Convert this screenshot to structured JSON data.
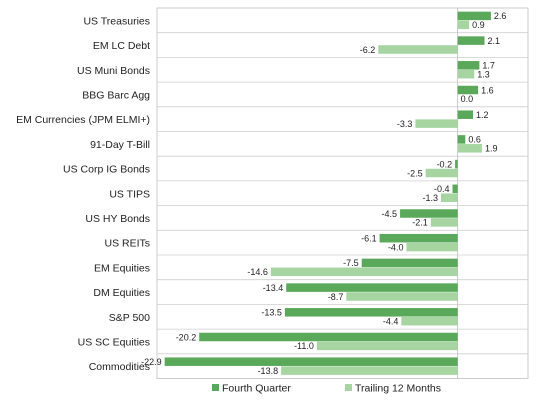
{
  "chart_data": {
    "type": "bar",
    "orientation": "horizontal",
    "categories": [
      "US Treasuries",
      "EM LC Debt",
      "US Muni Bonds",
      "BBG Barc Agg",
      "EM Currencies (JPM ELMI+)",
      "91-Day T-Bill",
      "US Corp IG Bonds",
      "US TIPS",
      "US HY Bonds",
      "US REITs",
      "EM Equities",
      "DM Equities",
      "S&P 500",
      "US SC Equities",
      "Commodities"
    ],
    "series": [
      {
        "name": "Fourth Quarter",
        "color": "#5aa85a",
        "values": [
          2.6,
          2.1,
          1.7,
          1.6,
          1.2,
          0.6,
          -0.2,
          -0.4,
          -4.5,
          -6.1,
          -7.5,
          -13.4,
          -13.5,
          -20.2,
          -22.9
        ],
        "labels": [
          "2.6",
          "2.1",
          "1.7",
          "1.6",
          "1.2",
          "0.6",
          "-0.2",
          "-0.4",
          "-4.5",
          "-6.1",
          "-7.5",
          "-13.4",
          "-13.5",
          "-20.2",
          "-22.9"
        ]
      },
      {
        "name": "Trailing 12 Months",
        "color": "#a6d5a2",
        "values": [
          0.9,
          -6.2,
          1.3,
          0.0,
          -3.3,
          1.9,
          -2.5,
          -1.3,
          -2.1,
          -4.0,
          -14.6,
          -8.7,
          -4.4,
          -11.0,
          -13.8
        ],
        "labels": [
          "0.9",
          "-6.2",
          "1.3",
          "0.0",
          "-3.3",
          "1.9",
          "-2.5",
          "-1.3",
          "-2.1",
          "-4.0",
          "-14.6",
          "-8.7",
          "-4.4",
          "-11.0",
          "-13.8"
        ]
      }
    ],
    "xlim": [
      -23.5,
      5.5
    ],
    "title": "",
    "xlabel": "",
    "ylabel": "",
    "grid": "horizontal row dividers",
    "legend_position": "bottom-center"
  }
}
